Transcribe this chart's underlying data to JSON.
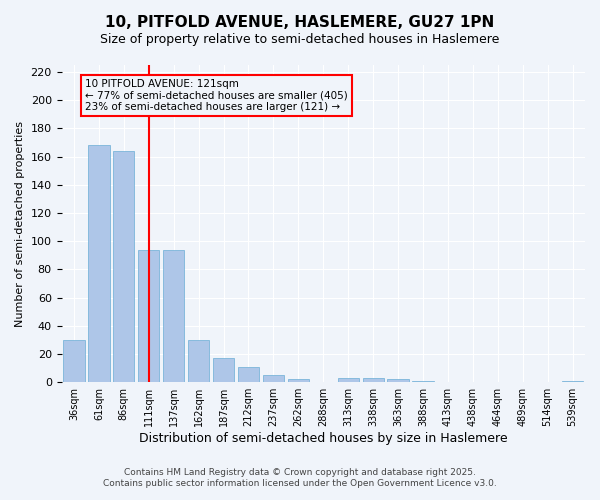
{
  "title_line1": "10, PITFOLD AVENUE, HASLEMERE, GU27 1PN",
  "title_line2": "Size of property relative to semi-detached houses in Haslemere",
  "xlabel": "Distribution of semi-detached houses by size in Haslemere",
  "ylabel": "Number of semi-detached properties",
  "bar_labels": [
    "36sqm",
    "61sqm",
    "86sqm",
    "111sqm",
    "137sqm",
    "162sqm",
    "187sqm",
    "212sqm",
    "237sqm",
    "262sqm",
    "288sqm",
    "313sqm",
    "338sqm",
    "363sqm",
    "388sqm",
    "413sqm",
    "438sqm",
    "464sqm",
    "489sqm",
    "514sqm",
    "539sqm"
  ],
  "bar_values": [
    30,
    168,
    164,
    94,
    94,
    30,
    17,
    11,
    5,
    2,
    0,
    3,
    3,
    2,
    1,
    0,
    0,
    0,
    0,
    0,
    1
  ],
  "bar_color": "#aec6e8",
  "bar_edgecolor": "#6aaed6",
  "annotation_line1": "10 PITFOLD AVENUE: 121sqm",
  "annotation_line2": "← 77% of semi-detached houses are smaller (405)",
  "annotation_line3": "23% of semi-detached houses are larger (121) →",
  "vline_x": 3.0,
  "vline_color": "red",
  "ylim": [
    0,
    225
  ],
  "yticks": [
    0,
    20,
    40,
    60,
    80,
    100,
    120,
    140,
    160,
    180,
    200,
    220
  ],
  "annotation_box_color": "red",
  "footer_line1": "Contains HM Land Registry data © Crown copyright and database right 2025.",
  "footer_line2": "Contains public sector information licensed under the Open Government Licence v3.0.",
  "background_color": "#f0f4fa",
  "grid_color": "#ffffff"
}
